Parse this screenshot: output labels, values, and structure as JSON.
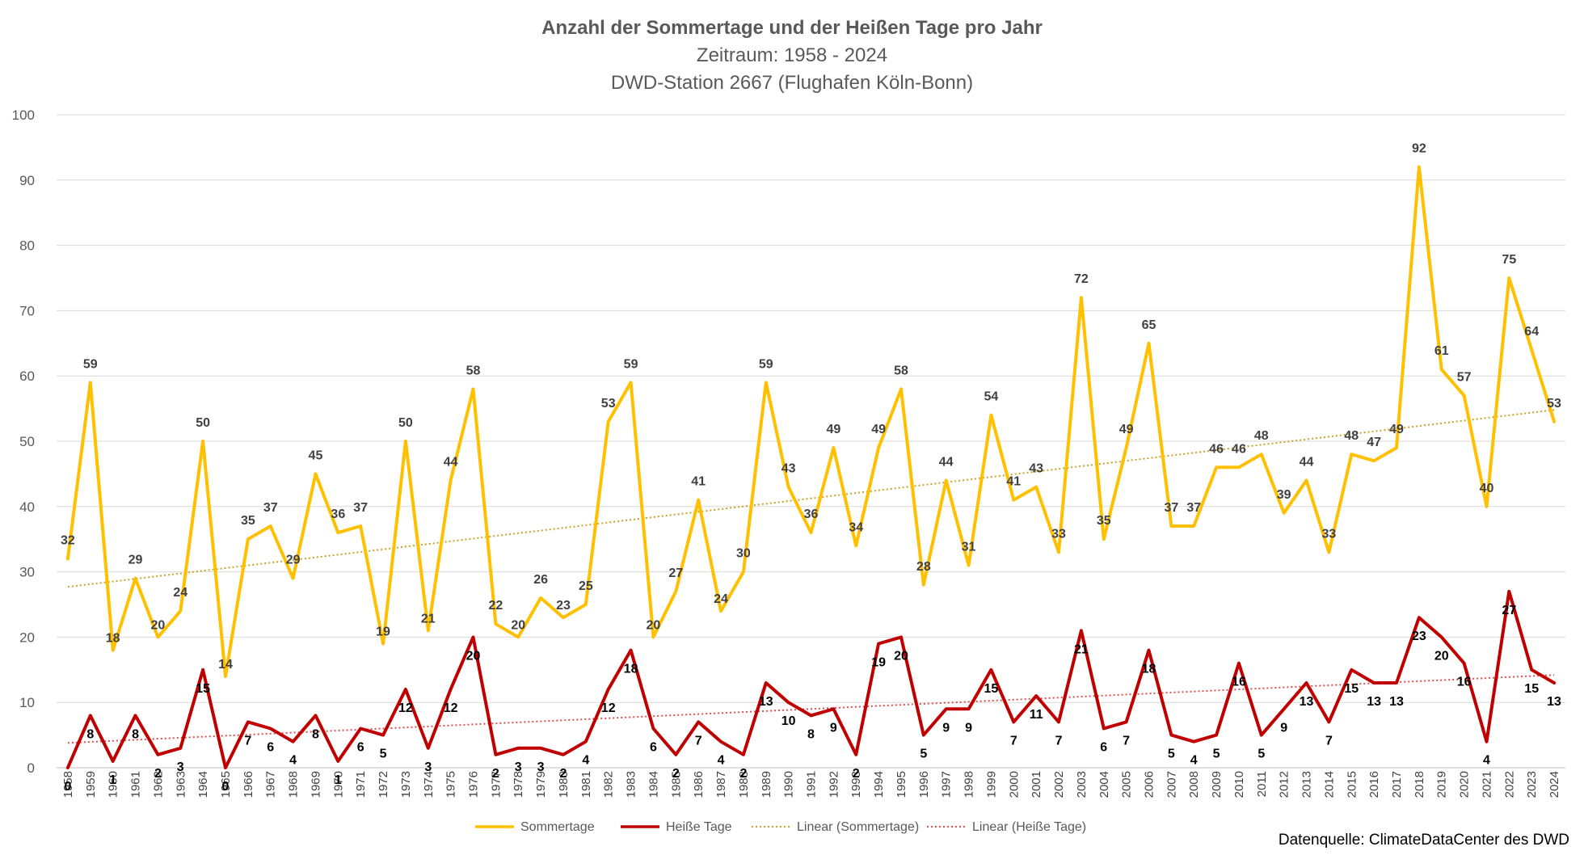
{
  "chart_data": {
    "type": "line",
    "title": "Anzahl der Sommertage und der Heißen Tage pro Jahr",
    "subtitle_1": "Zeitraum: 1958 - 2024",
    "subtitle_2": "DWD-Station 2667 (Flughafen Köln-Bonn)",
    "source_note": "Datenquelle: ClimateDataCenter des DWD",
    "ylim": [
      0,
      100
    ],
    "yticks": [
      "0",
      "10",
      "20",
      "30",
      "40",
      "50",
      "60",
      "70",
      "80",
      "90",
      "100"
    ],
    "grid": "horizontal",
    "legend_position": "bottom",
    "x": [
      "1958",
      "1959",
      "1960",
      "1961",
      "1962",
      "1963",
      "1964",
      "1965",
      "1966",
      "1967",
      "1968",
      "1969",
      "1970",
      "1971",
      "1972",
      "1973",
      "1974",
      "1975",
      "1976",
      "1977",
      "1978",
      "1979",
      "1980",
      "1981",
      "1982",
      "1983",
      "1984",
      "1985",
      "1986",
      "1987",
      "1988",
      "1989",
      "1990",
      "1991",
      "1992",
      "1993",
      "1994",
      "1995",
      "1996",
      "1997",
      "1998",
      "1999",
      "2000",
      "2001",
      "2002",
      "2003",
      "2004",
      "2005",
      "2006",
      "2007",
      "2008",
      "2009",
      "2010",
      "2011",
      "2012",
      "2013",
      "2014",
      "2015",
      "2016",
      "2017",
      "2018",
      "2019",
      "2020",
      "2021",
      "2022",
      "2023",
      "2024"
    ],
    "series": [
      {
        "name": "Sommertage",
        "color": "#FFC000",
        "values": [
          32,
          59,
          18,
          29,
          20,
          24,
          50,
          14,
          35,
          37,
          29,
          45,
          36,
          37,
          19,
          50,
          21,
          44,
          58,
          22,
          20,
          26,
          23,
          25,
          53,
          59,
          20,
          27,
          41,
          24,
          30,
          59,
          43,
          36,
          49,
          34,
          49,
          58,
          28,
          44,
          31,
          54,
          41,
          43,
          33,
          72,
          35,
          49,
          65,
          37,
          37,
          46,
          46,
          48,
          39,
          44,
          33,
          48,
          47,
          49,
          92,
          61,
          57,
          40,
          75,
          64,
          53
        ]
      },
      {
        "name": "Heiße Tage",
        "color": "#C00000",
        "values": [
          0,
          8,
          1,
          8,
          2,
          3,
          15,
          0,
          7,
          6,
          4,
          8,
          1,
          6,
          5,
          12,
          3,
          12,
          20,
          2,
          3,
          3,
          2,
          4,
          12,
          18,
          6,
          2,
          7,
          4,
          2,
          13,
          10,
          8,
          9,
          2,
          19,
          20,
          5,
          9,
          9,
          15,
          7,
          11,
          7,
          21,
          6,
          7,
          18,
          5,
          4,
          5,
          16,
          5,
          9,
          13,
          7,
          15,
          13,
          13,
          23,
          20,
          16,
          4,
          27,
          15,
          13
        ]
      }
    ],
    "trendlines": [
      {
        "name": "Linear (Sommertage)",
        "color": "#C9A227",
        "style": "dotted",
        "start": 27.7,
        "end": 54.8
      },
      {
        "name": "Linear (Heiße Tage)",
        "color": "#E05050",
        "style": "dotted",
        "start": 3.8,
        "end": 14.2
      }
    ]
  }
}
